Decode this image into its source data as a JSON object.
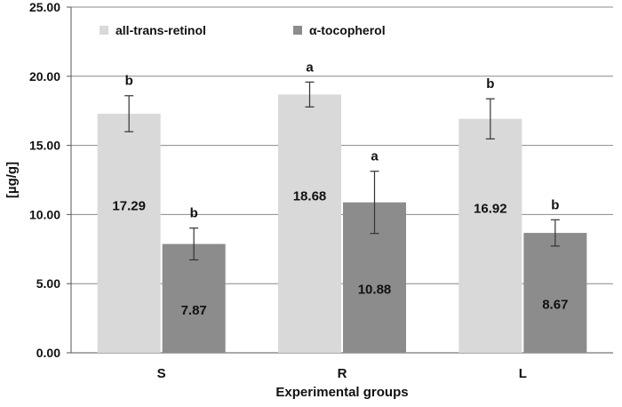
{
  "chart_data": {
    "type": "bar",
    "categories": [
      "S",
      "R",
      "L"
    ],
    "xlabel": "Experimental groups",
    "ylabel": "[µg/g]",
    "ylim": [
      0,
      25
    ],
    "yticks": [
      "0.00",
      "5.00",
      "10.00",
      "15.00",
      "20.00",
      "25.00"
    ],
    "grid": true,
    "legend_position": "top-left",
    "series": [
      {
        "name": "all-trans-retinol",
        "color": "#d9d9d9",
        "values": [
          17.29,
          18.68,
          16.92
        ],
        "value_labels": [
          "17.29",
          "18.68",
          "16.92"
        ],
        "error": [
          1.3,
          0.9,
          1.45
        ],
        "significance": [
          "b",
          "a",
          "b"
        ]
      },
      {
        "name": "α-tocopherol",
        "color": "#8c8c8c",
        "values": [
          7.87,
          10.88,
          8.67
        ],
        "value_labels": [
          "7.87",
          "10.88",
          "8.67"
        ],
        "error": [
          1.15,
          2.25,
          0.95
        ],
        "significance": [
          "b",
          "a",
          "b"
        ]
      }
    ]
  }
}
